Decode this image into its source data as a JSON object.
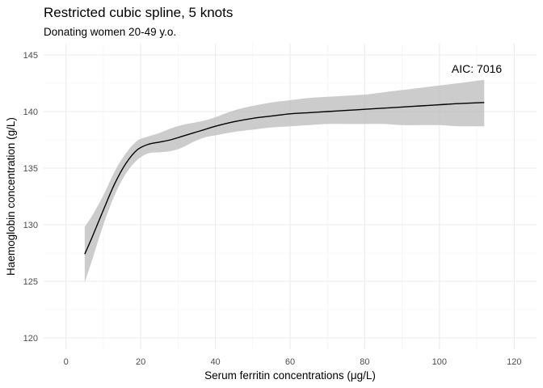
{
  "chart_data": {
    "type": "line",
    "title": "Restricted cubic spline, 5 knots",
    "subtitle": "Donating women 20-49 y.o.",
    "xlabel": "Serum ferritin concentrations (μg/L)",
    "ylabel": "Haemoglobin concentration (g/L)",
    "xlim": [
      -6,
      126
    ],
    "ylim": [
      119,
      146
    ],
    "x_ticks": [
      0,
      20,
      40,
      60,
      80,
      100,
      120
    ],
    "y_ticks": [
      120,
      125,
      130,
      135,
      140,
      145
    ],
    "grid": true,
    "annotation": {
      "text": "AIC: 7016",
      "x": 110,
      "y": 143.8
    },
    "colors": {
      "line": "#000000",
      "band": "#bfbfbf"
    },
    "series": [
      {
        "x": [
          5,
          7,
          10,
          13,
          16,
          19,
          22,
          25,
          28,
          31,
          34,
          37,
          40,
          45,
          50,
          55,
          60,
          65,
          70,
          75,
          80,
          85,
          90,
          95,
          100,
          105,
          112
        ],
        "y": [
          127.4,
          128.9,
          131.3,
          133.6,
          135.4,
          136.6,
          137.1,
          137.3,
          137.5,
          137.8,
          138.1,
          138.4,
          138.7,
          139.1,
          139.4,
          139.6,
          139.8,
          139.9,
          140.0,
          140.1,
          140.2,
          140.3,
          140.4,
          140.5,
          140.6,
          140.7,
          140.8
        ],
        "lower": [
          124.9,
          126.9,
          130.0,
          132.6,
          134.5,
          135.7,
          136.3,
          136.4,
          136.5,
          136.8,
          137.3,
          137.7,
          137.9,
          138.2,
          138.4,
          138.6,
          138.7,
          138.8,
          138.9,
          138.9,
          138.9,
          138.9,
          138.8,
          138.8,
          138.8,
          138.7,
          138.7
        ],
        "upper": [
          129.8,
          130.8,
          132.6,
          134.7,
          136.3,
          137.4,
          137.8,
          138.1,
          138.5,
          138.8,
          139.0,
          139.2,
          139.5,
          140.1,
          140.5,
          140.8,
          141.0,
          141.2,
          141.3,
          141.4,
          141.5,
          141.7,
          141.9,
          142.1,
          142.3,
          142.5,
          142.8
        ]
      }
    ]
  }
}
